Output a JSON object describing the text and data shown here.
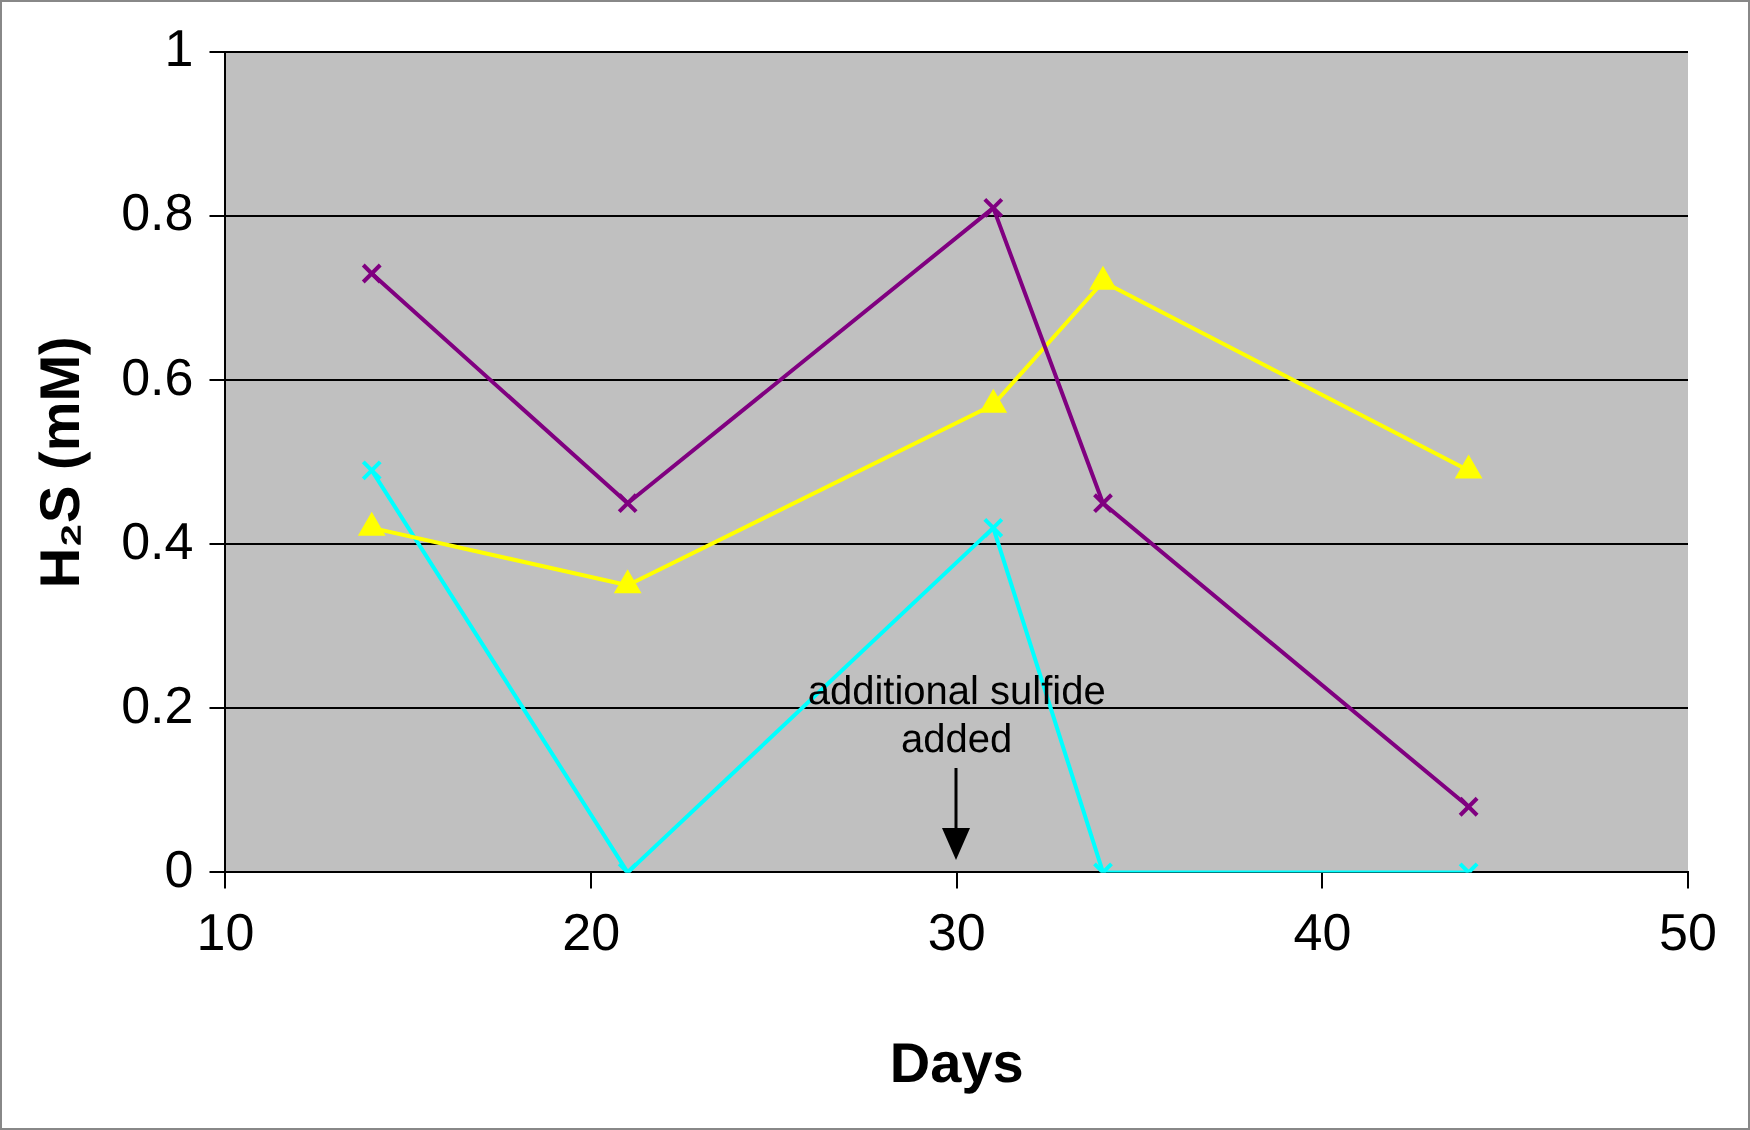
{
  "chart_data": {
    "type": "line",
    "xlabel": "Days",
    "ylabel": "H₂S (mM)",
    "x": [
      14,
      21,
      31,
      34,
      44
    ],
    "series": [
      {
        "color": "#800080",
        "marker": "cross",
        "values": [
          0.73,
          0.45,
          0.81,
          0.45,
          0.08
        ]
      },
      {
        "color": "#ffff00",
        "marker": "triangle",
        "values": [
          0.42,
          0.35,
          0.57,
          0.72,
          0.49
        ]
      },
      {
        "color": "#00ffff",
        "marker": "cross",
        "values": [
          0.49,
          0,
          0.42,
          0,
          0
        ]
      }
    ],
    "xlim": [
      10,
      50
    ],
    "xticks": [
      10,
      20,
      30,
      40,
      50
    ],
    "ylim": [
      0,
      1
    ],
    "yticks": [
      0,
      0.2,
      0.4,
      0.6,
      0.8,
      1
    ],
    "grid": "y",
    "legend": false,
    "annotations": [
      "additional sulfide added"
    ]
  }
}
